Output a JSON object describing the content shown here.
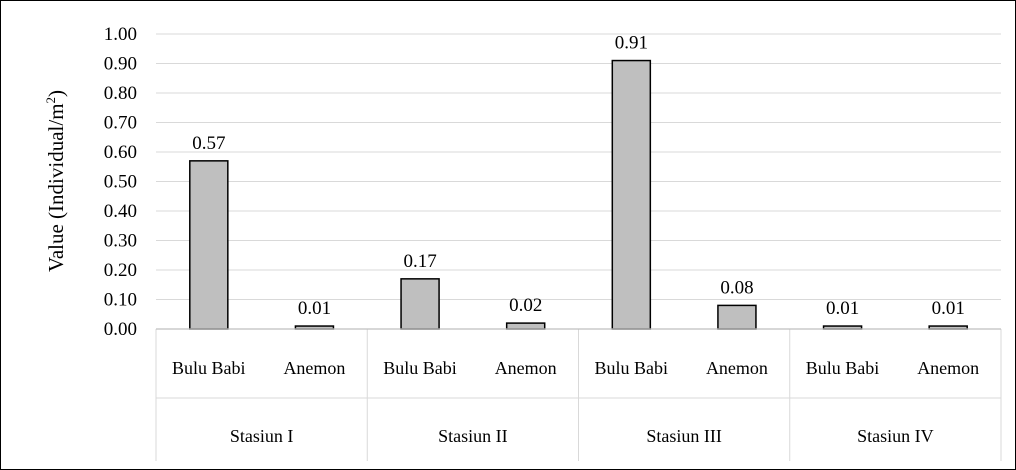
{
  "chart_data": {
    "type": "bar",
    "title": "",
    "ylabel": "Value (Individual/m",
    "ylabel_superscript": "2",
    "ylabel_suffix": ")",
    "xlabel": "",
    "ylim": [
      0,
      1.0
    ],
    "y_ticks": [
      0.0,
      0.1,
      0.2,
      0.3,
      0.4,
      0.5,
      0.6,
      0.7,
      0.8,
      0.9,
      1.0
    ],
    "y_tick_labels": [
      "0.00",
      "0.10",
      "0.20",
      "0.30",
      "0.40",
      "0.50",
      "0.60",
      "0.70",
      "0.80",
      "0.90",
      "1.00"
    ],
    "grid": true,
    "legend": "none",
    "bar_color": "#bfbfbf",
    "bar_edge_color": "#000000",
    "gridline_color": "#d9d9d9",
    "groups": [
      {
        "name": "Stasiun I",
        "categories": [
          "Bulu Babi",
          "Anemon"
        ],
        "values": [
          0.57,
          0.01
        ],
        "labels": [
          "0.57",
          "0.01"
        ]
      },
      {
        "name": "Stasiun II",
        "categories": [
          "Bulu Babi",
          "Anemon"
        ],
        "values": [
          0.17,
          0.02
        ],
        "labels": [
          "0.17",
          "0.02"
        ]
      },
      {
        "name": "Stasiun III",
        "categories": [
          "Bulu Babi",
          "Anemon"
        ],
        "values": [
          0.91,
          0.08
        ],
        "labels": [
          "0.91",
          "0.08"
        ]
      },
      {
        "name": "Stasiun IV",
        "categories": [
          "Bulu Babi",
          "Anemon"
        ],
        "values": [
          0.01,
          0.01
        ],
        "labels": [
          "0.01",
          "0.01"
        ]
      }
    ]
  }
}
